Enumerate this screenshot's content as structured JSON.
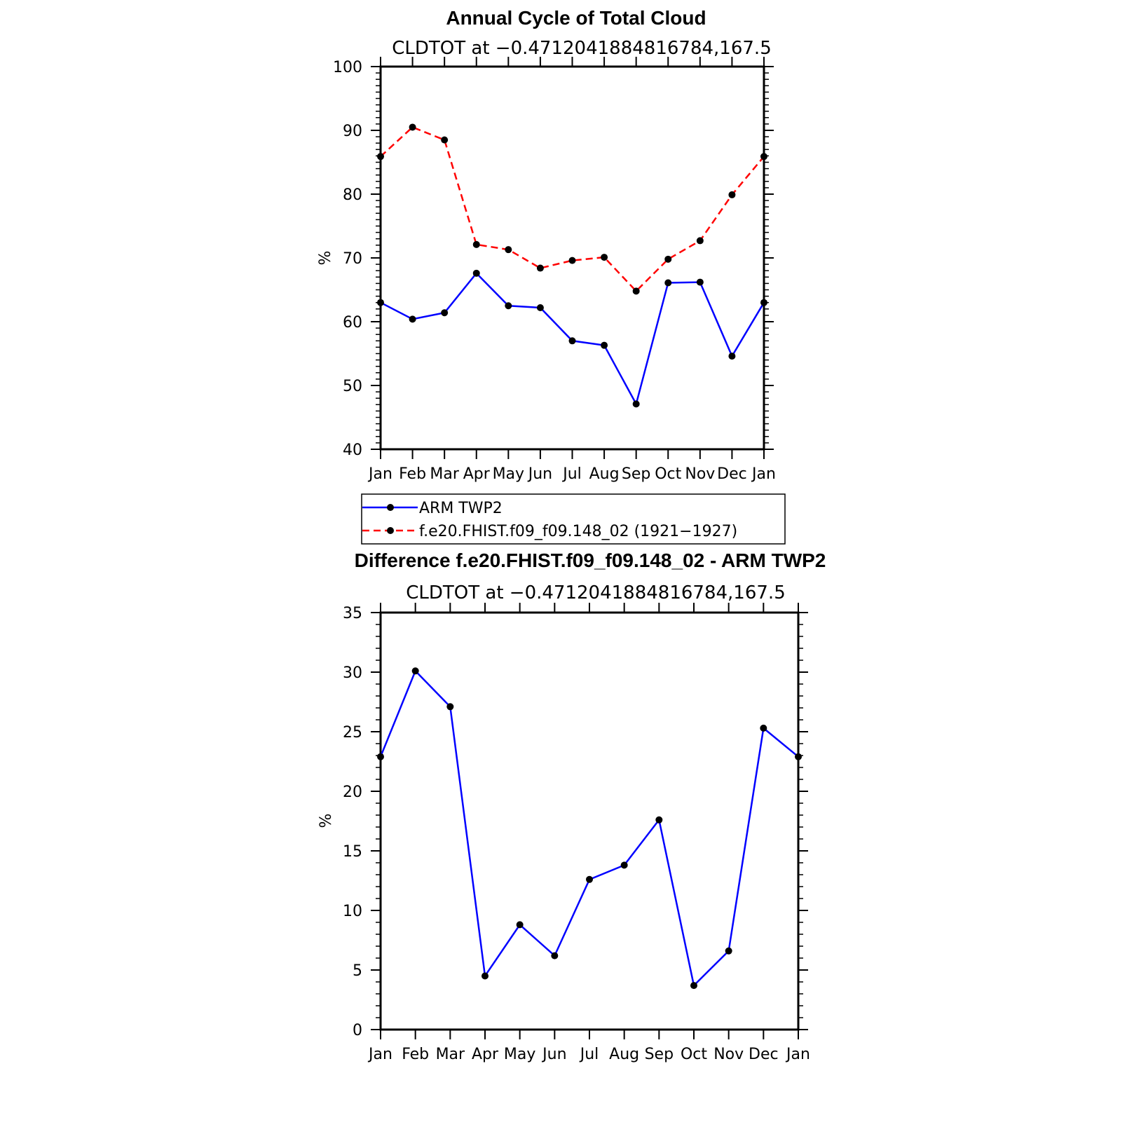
{
  "chart_data": [
    {
      "type": "line",
      "title": "Annual Cycle of Total Cloud",
      "subtitle": "CLDTOT at −0.4712041884816784,167.5",
      "ylabel": "%",
      "ylim": [
        40,
        100
      ],
      "yticks": [
        "40",
        "50",
        "60",
        "70",
        "80",
        "90",
        "100"
      ],
      "categories": [
        "Jan",
        "Feb",
        "Mar",
        "Apr",
        "May",
        "Jun",
        "Jul",
        "Aug",
        "Sep",
        "Oct",
        "Nov",
        "Dec",
        "Jan"
      ],
      "series": [
        {
          "name": "ARM TWP2",
          "color": "#0000ff",
          "dash": "solid",
          "values": [
            63.0,
            60.4,
            61.4,
            67.6,
            62.5,
            62.2,
            57.0,
            56.3,
            47.1,
            66.1,
            66.2,
            54.6,
            63.0
          ]
        },
        {
          "name": "f.e20.FHIST.f09_f09.148_02 (1921−1927)",
          "color": "#ff0000",
          "dash": "dashed",
          "values": [
            85.9,
            90.5,
            88.5,
            72.1,
            71.3,
            68.4,
            69.6,
            70.1,
            64.8,
            69.8,
            72.7,
            79.9,
            85.9
          ]
        }
      ],
      "legend": {
        "position": "bottom",
        "entries": [
          "ARM TWP2",
          "f.e20.FHIST.f09_f09.148_02 (1921−1927)"
        ]
      }
    },
    {
      "type": "line",
      "title": "Difference f.e20.FHIST.f09_f09.148_02 - ARM TWP2",
      "subtitle": "CLDTOT at −0.4712041884816784,167.5",
      "ylabel": "%",
      "ylim": [
        0,
        35
      ],
      "yticks": [
        "0",
        "5",
        "10",
        "15",
        "20",
        "25",
        "30",
        "35"
      ],
      "categories": [
        "Jan",
        "Feb",
        "Mar",
        "Apr",
        "May",
        "Jun",
        "Jul",
        "Aug",
        "Sep",
        "Oct",
        "Nov",
        "Dec",
        "Jan"
      ],
      "series": [
        {
          "name": "Difference",
          "color": "#0000ff",
          "dash": "solid",
          "values": [
            22.9,
            30.1,
            27.1,
            4.5,
            8.8,
            6.2,
            12.6,
            13.8,
            17.6,
            3.7,
            6.6,
            25.3,
            22.9
          ]
        }
      ]
    }
  ]
}
